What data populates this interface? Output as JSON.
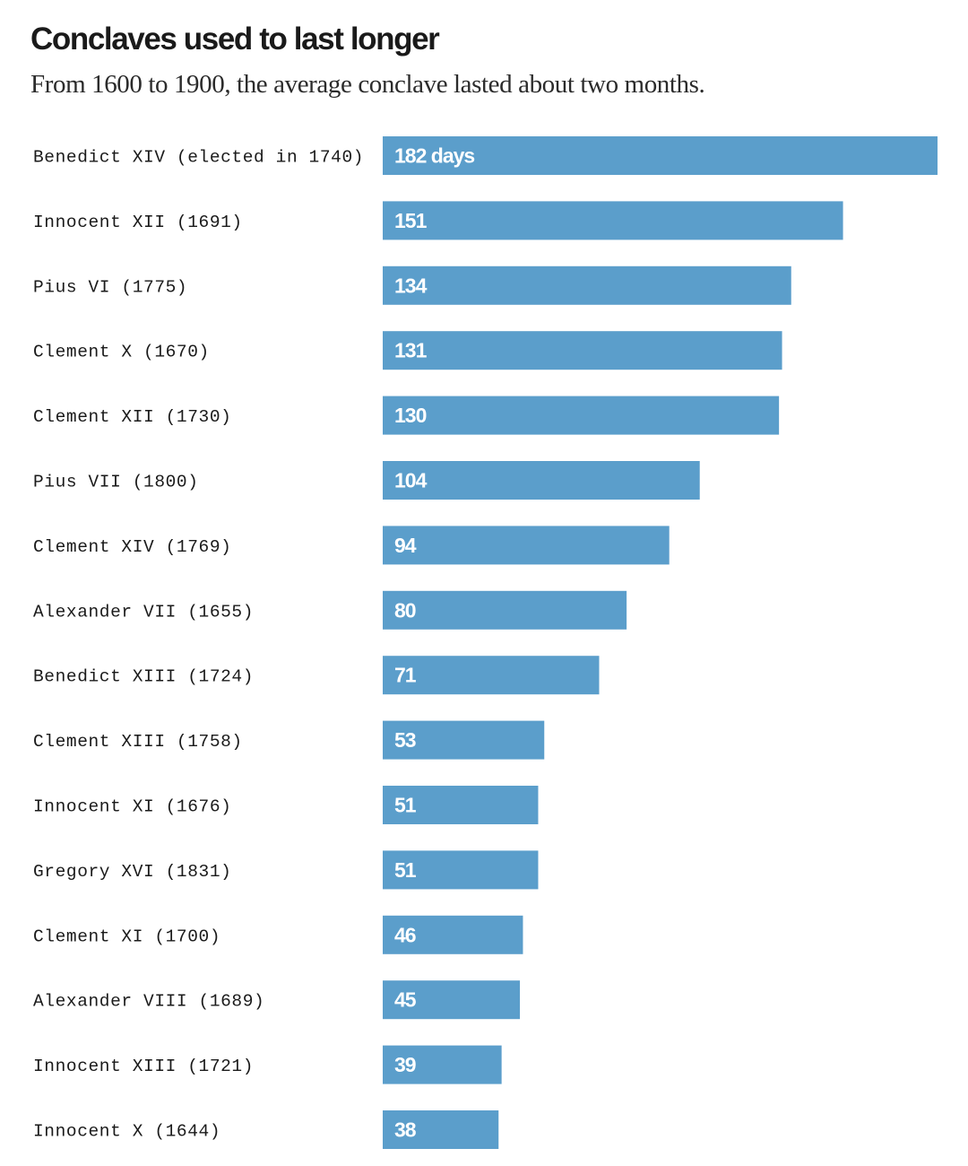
{
  "title": "Conclaves used to last longer",
  "subtitle": "From 1600 to 1900, the average conclave lasted about two months.",
  "colors": {
    "bar": "#5b9ecb",
    "value_text": "#ffffff",
    "label_text": "#1a1a1a"
  },
  "chart_data": {
    "type": "bar",
    "orientation": "horizontal",
    "unit": "days",
    "grid": false,
    "legend": "none",
    "xlim": [
      0,
      182
    ],
    "categories": [
      "Benedict XIV (elected in 1740)",
      "Innocent XII (1691)",
      "Pius VI (1775)",
      "Clement X (1670)",
      "Clement XII (1730)",
      "Pius VII (1800)",
      "Clement XIV (1769)",
      "Alexander VII (1655)",
      "Benedict XIII (1724)",
      "Clement XIII (1758)",
      "Innocent XI (1676)",
      "Gregory XVI (1831)",
      "Clement XI (1700)",
      "Alexander VIII (1689)",
      "Innocent XIII (1721)",
      "Innocent X (1644)"
    ],
    "values": [
      182,
      151,
      134,
      131,
      130,
      104,
      94,
      80,
      71,
      53,
      51,
      51,
      46,
      45,
      39,
      38
    ],
    "value_labels": [
      "182 days",
      "151",
      "134",
      "131",
      "130",
      "104",
      "94",
      "80",
      "71",
      "53",
      "51",
      "51",
      "46",
      "45",
      "39",
      "38"
    ]
  }
}
